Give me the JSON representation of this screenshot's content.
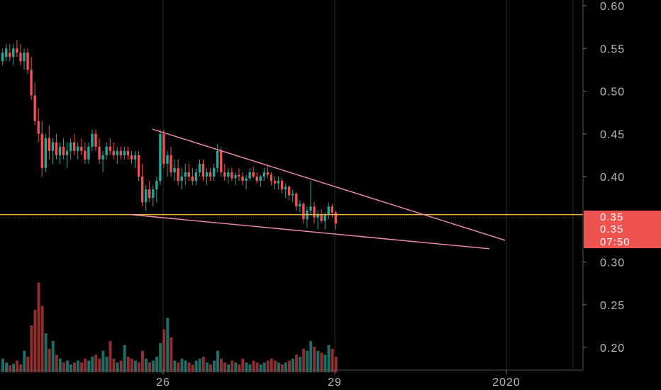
{
  "chart_data": {
    "type": "candlestick",
    "price_axis": {
      "ticks": [
        "0.60",
        "0.55",
        "0.50",
        "0.45",
        "0.40",
        "0.30",
        "0.25",
        "0.20"
      ],
      "tick_values": [
        0.6,
        0.55,
        0.5,
        0.45,
        0.4,
        0.3,
        0.25,
        0.2
      ],
      "range": [
        0.1675,
        0.6025
      ]
    },
    "time_axis": {
      "ticks": [
        "26",
        "29",
        "2020"
      ]
    },
    "badges": {
      "price_a": "0.35",
      "price_b": "0.35",
      "countdown": "07:50"
    },
    "horizontal_line": {
      "value": 0.3555,
      "color": "#f0b43c"
    },
    "trend_lines": [
      {
        "name": "upper",
        "from": [
          0.4555,
          "26"
        ],
        "to": [
          0.3255,
          "2020"
        ]
      },
      {
        "name": "lower",
        "from": [
          0.3555,
          "26"
        ],
        "to": [
          0.3155,
          "2020"
        ]
      }
    ],
    "colors": {
      "up": "#26a69a",
      "down": "#ef5350",
      "up_volume": "#1d6e67",
      "down_volume": "#8e2e2e",
      "trendline": "#f48fb1",
      "badge": "#ef5350"
    },
    "candles": [
      [
        0.535,
        0.55,
        0.53,
        0.545
      ],
      [
        0.54,
        0.555,
        0.535,
        0.55
      ],
      [
        0.545,
        0.555,
        0.535,
        0.54
      ],
      [
        0.54,
        0.555,
        0.53,
        0.55
      ],
      [
        0.55,
        0.56,
        0.54,
        0.545
      ],
      [
        0.545,
        0.555,
        0.53,
        0.535
      ],
      [
        0.535,
        0.55,
        0.525,
        0.545
      ],
      [
        0.545,
        0.55,
        0.52,
        0.525
      ],
      [
        0.525,
        0.54,
        0.49,
        0.495
      ],
      [
        0.495,
        0.51,
        0.46,
        0.465
      ],
      [
        0.465,
        0.48,
        0.44,
        0.45
      ],
      [
        0.45,
        0.465,
        0.4,
        0.41
      ],
      [
        0.41,
        0.45,
        0.405,
        0.445
      ],
      [
        0.445,
        0.46,
        0.42,
        0.43
      ],
      [
        0.43,
        0.445,
        0.415,
        0.44
      ],
      [
        0.44,
        0.45,
        0.42,
        0.425
      ],
      [
        0.425,
        0.44,
        0.415,
        0.435
      ],
      [
        0.435,
        0.445,
        0.42,
        0.425
      ],
      [
        0.425,
        0.44,
        0.41,
        0.43
      ],
      [
        0.43,
        0.445,
        0.42,
        0.44
      ],
      [
        0.44,
        0.45,
        0.425,
        0.43
      ],
      [
        0.43,
        0.44,
        0.42,
        0.435
      ],
      [
        0.435,
        0.445,
        0.425,
        0.43
      ],
      [
        0.43,
        0.44,
        0.415,
        0.42
      ],
      [
        0.42,
        0.44,
        0.415,
        0.435
      ],
      [
        0.435,
        0.455,
        0.43,
        0.45
      ],
      [
        0.45,
        0.455,
        0.43,
        0.435
      ],
      [
        0.435,
        0.445,
        0.415,
        0.42
      ],
      [
        0.42,
        0.43,
        0.405,
        0.425
      ],
      [
        0.425,
        0.44,
        0.42,
        0.435
      ],
      [
        0.435,
        0.445,
        0.425,
        0.43
      ],
      [
        0.43,
        0.44,
        0.42,
        0.425
      ],
      [
        0.425,
        0.435,
        0.415,
        0.43
      ],
      [
        0.43,
        0.435,
        0.42,
        0.425
      ],
      [
        0.425,
        0.435,
        0.42,
        0.43
      ],
      [
        0.43,
        0.435,
        0.42,
        0.425
      ],
      [
        0.425,
        0.43,
        0.415,
        0.42
      ],
      [
        0.42,
        0.43,
        0.41,
        0.425
      ],
      [
        0.425,
        0.43,
        0.395,
        0.4
      ],
      [
        0.4,
        0.415,
        0.365,
        0.37
      ],
      [
        0.37,
        0.39,
        0.36,
        0.385
      ],
      [
        0.385,
        0.395,
        0.37,
        0.375
      ],
      [
        0.375,
        0.39,
        0.365,
        0.385
      ],
      [
        0.385,
        0.4,
        0.37,
        0.395
      ],
      [
        0.395,
        0.455,
        0.39,
        0.45
      ],
      [
        0.45,
        0.455,
        0.41,
        0.415
      ],
      [
        0.415,
        0.43,
        0.4,
        0.425
      ],
      [
        0.425,
        0.435,
        0.4,
        0.405
      ],
      [
        0.405,
        0.42,
        0.395,
        0.41
      ],
      [
        0.41,
        0.42,
        0.39,
        0.395
      ],
      [
        0.395,
        0.41,
        0.385,
        0.4
      ],
      [
        0.4,
        0.415,
        0.39,
        0.405
      ],
      [
        0.405,
        0.415,
        0.395,
        0.4
      ],
      [
        0.4,
        0.41,
        0.39,
        0.395
      ],
      [
        0.395,
        0.41,
        0.39,
        0.405
      ],
      [
        0.405,
        0.42,
        0.4,
        0.415
      ],
      [
        0.415,
        0.42,
        0.395,
        0.4
      ],
      [
        0.4,
        0.41,
        0.39,
        0.405
      ],
      [
        0.405,
        0.41,
        0.395,
        0.4
      ],
      [
        0.4,
        0.415,
        0.395,
        0.41
      ],
      [
        0.41,
        0.438,
        0.405,
        0.43
      ],
      [
        0.43,
        0.435,
        0.4,
        0.405
      ],
      [
        0.405,
        0.415,
        0.395,
        0.4
      ],
      [
        0.4,
        0.41,
        0.392,
        0.405
      ],
      [
        0.405,
        0.41,
        0.395,
        0.398
      ],
      [
        0.398,
        0.405,
        0.39,
        0.402
      ],
      [
        0.402,
        0.41,
        0.395,
        0.4
      ],
      [
        0.4,
        0.405,
        0.39,
        0.395
      ],
      [
        0.395,
        0.402,
        0.385,
        0.398
      ],
      [
        0.398,
        0.41,
        0.395,
        0.405
      ],
      [
        0.405,
        0.412,
        0.398,
        0.4
      ],
      [
        0.4,
        0.405,
        0.392,
        0.395
      ],
      [
        0.395,
        0.402,
        0.388,
        0.4
      ],
      [
        0.4,
        0.41,
        0.395,
        0.405
      ],
      [
        0.405,
        0.412,
        0.398,
        0.402
      ],
      [
        0.402,
        0.405,
        0.39,
        0.395
      ],
      [
        0.395,
        0.4,
        0.385,
        0.392
      ],
      [
        0.392,
        0.4,
        0.385,
        0.395
      ],
      [
        0.395,
        0.398,
        0.38,
        0.385
      ],
      [
        0.385,
        0.392,
        0.375,
        0.388
      ],
      [
        0.388,
        0.39,
        0.372,
        0.378
      ],
      [
        0.378,
        0.385,
        0.37,
        0.38
      ],
      [
        0.38,
        0.382,
        0.36,
        0.365
      ],
      [
        0.365,
        0.372,
        0.358,
        0.368
      ],
      [
        0.368,
        0.37,
        0.345,
        0.35
      ],
      [
        0.35,
        0.365,
        0.34,
        0.36
      ],
      [
        0.36,
        0.395,
        0.355,
        0.365
      ],
      [
        0.365,
        0.37,
        0.345,
        0.352
      ],
      [
        0.352,
        0.36,
        0.338,
        0.355
      ],
      [
        0.355,
        0.362,
        0.345,
        0.348
      ],
      [
        0.348,
        0.358,
        0.338,
        0.355
      ],
      [
        0.355,
        0.37,
        0.35,
        0.365
      ],
      [
        0.365,
        0.368,
        0.352,
        0.358
      ],
      [
        0.358,
        0.36,
        0.338,
        0.345
      ]
    ],
    "volumes": [
      0.35,
      0.25,
      0.18,
      0.22,
      0.3,
      0.2,
      0.55,
      0.4,
      1.2,
      1.6,
      2.3,
      1.7,
      1.0,
      0.6,
      0.8,
      0.45,
      0.35,
      0.25,
      0.3,
      0.2,
      0.25,
      0.3,
      0.25,
      0.35,
      0.3,
      0.4,
      0.45,
      0.35,
      0.55,
      0.4,
      0.8,
      0.35,
      0.25,
      0.3,
      0.7,
      0.4,
      0.35,
      0.3,
      0.25,
      0.55,
      0.35,
      0.25,
      0.3,
      0.4,
      0.75,
      1.1,
      1.4,
      0.9,
      0.3,
      0.25,
      0.35,
      0.3,
      0.25,
      0.2,
      0.3,
      0.35,
      0.4,
      0.25,
      0.2,
      0.3,
      0.55,
      0.35,
      0.25,
      0.2,
      0.3,
      0.25,
      0.2,
      0.35,
      0.25,
      0.2,
      0.3,
      0.25,
      0.2,
      0.25,
      0.3,
      0.35,
      0.3,
      0.25,
      0.2,
      0.25,
      0.3,
      0.35,
      0.45,
      0.4,
      0.6,
      0.55,
      0.8,
      0.65,
      0.55,
      0.5,
      0.45,
      0.7,
      0.6,
      0.4
    ]
  }
}
